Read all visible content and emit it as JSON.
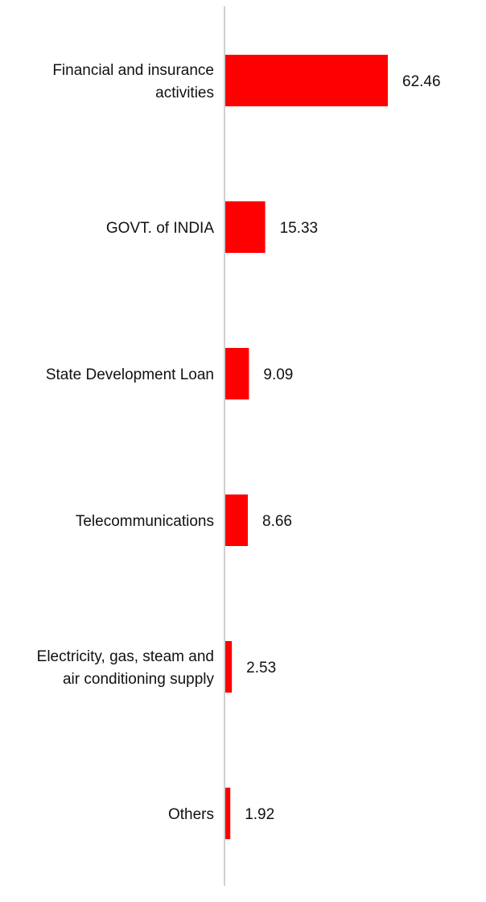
{
  "chart_data": {
    "type": "bar",
    "orientation": "horizontal",
    "categories": [
      [
        "Financial and insurance",
        "activities"
      ],
      [
        "GOVT. of INDIA"
      ],
      [
        "State Development Loan"
      ],
      [
        "Telecommunications"
      ],
      [
        "Electricity, gas, steam and",
        "air conditioning supply"
      ],
      [
        "Others"
      ]
    ],
    "values": [
      62.46,
      15.33,
      9.09,
      8.66,
      2.53,
      1.92
    ],
    "value_labels": [
      "62.46",
      "15.33",
      "9.09",
      "8.66",
      "2.53",
      "1.92"
    ],
    "bar_color": "#ff0000",
    "axis_color": "#d0d0d0",
    "xlim": [
      0,
      62.46
    ],
    "grid": false,
    "legend": "none"
  }
}
